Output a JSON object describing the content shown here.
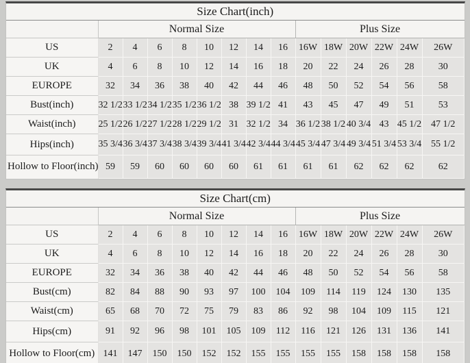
{
  "colors": {
    "page_background": "#cbcbc9",
    "panel_background": "#f5f4f2",
    "data_cell_background": "#e4e3e1",
    "top_border": "#474747",
    "text": "#1b1b1b"
  },
  "chart_data": [
    {
      "type": "table",
      "title": "Size Chart(inch)",
      "column_groups": [
        {
          "label": "",
          "span": 1
        },
        {
          "label": "Normal Size",
          "span": 8
        },
        {
          "label": "Plus Size",
          "span": 6
        }
      ],
      "rows": [
        {
          "label": "US",
          "values": [
            "2",
            "4",
            "6",
            "8",
            "10",
            "12",
            "14",
            "16",
            "16W",
            "18W",
            "20W",
            "22W",
            "24W",
            "26W"
          ]
        },
        {
          "label": "UK",
          "values": [
            "4",
            "6",
            "8",
            "10",
            "12",
            "14",
            "16",
            "18",
            "20",
            "22",
            "24",
            "26",
            "28",
            "30"
          ]
        },
        {
          "label": "EUROPE",
          "values": [
            "32",
            "34",
            "36",
            "38",
            "40",
            "42",
            "44",
            "46",
            "48",
            "50",
            "52",
            "54",
            "56",
            "58"
          ]
        },
        {
          "label": "Bust(inch)",
          "values": [
            "32 1/2",
            "33 1/2",
            "34 1/2",
            "35 1/2",
            "36 1/2",
            "38",
            "39 1/2",
            "41",
            "43",
            "45",
            "47",
            "49",
            "51",
            "53"
          ]
        },
        {
          "label": "Waist(inch)",
          "values": [
            "25 1/2",
            "26 1/2",
            "27 1/2",
            "28 1/2",
            "29 1/2",
            "31",
            "32 1/2",
            "34",
            "36 1/2",
            "38 1/2",
            "40 3/4",
            "43",
            "45 1/2",
            "47 1/2"
          ]
        },
        {
          "label": "Hips(inch)",
          "values": [
            "35 3/4",
            "36 3/4",
            "37 3/4",
            "38 3/4",
            "39 3/4",
            "41 3/4",
            "42 3/4",
            "44 3/4",
            "45 3/4",
            "47 3/4",
            "49 3/4",
            "51 3/4",
            "53 3/4",
            "55 1/2"
          ]
        },
        {
          "label": "Hollow to Floor(inch)",
          "values": [
            "59",
            "59",
            "60",
            "60",
            "60",
            "60",
            "61",
            "61",
            "61",
            "61",
            "62",
            "62",
            "62",
            "62"
          ]
        }
      ]
    },
    {
      "type": "table",
      "title": "Size Chart(cm)",
      "column_groups": [
        {
          "label": "",
          "span": 1
        },
        {
          "label": "Normal Size",
          "span": 8
        },
        {
          "label": "Plus Size",
          "span": 6
        }
      ],
      "rows": [
        {
          "label": "US",
          "values": [
            "2",
            "4",
            "6",
            "8",
            "10",
            "12",
            "14",
            "16",
            "16W",
            "18W",
            "20W",
            "22W",
            "24W",
            "26W"
          ]
        },
        {
          "label": "UK",
          "values": [
            "4",
            "6",
            "8",
            "10",
            "12",
            "14",
            "16",
            "18",
            "20",
            "22",
            "24",
            "26",
            "28",
            "30"
          ]
        },
        {
          "label": "EUROPE",
          "values": [
            "32",
            "34",
            "36",
            "38",
            "40",
            "42",
            "44",
            "46",
            "48",
            "50",
            "52",
            "54",
            "56",
            "58"
          ]
        },
        {
          "label": "Bust(cm)",
          "values": [
            "82",
            "84",
            "88",
            "90",
            "93",
            "97",
            "100",
            "104",
            "109",
            "114",
            "119",
            "124",
            "130",
            "135"
          ]
        },
        {
          "label": "Waist(cm)",
          "values": [
            "65",
            "68",
            "70",
            "72",
            "75",
            "79",
            "83",
            "86",
            "92",
            "98",
            "104",
            "109",
            "115",
            "121"
          ]
        },
        {
          "label": "Hips(cm)",
          "values": [
            "91",
            "92",
            "96",
            "98",
            "101",
            "105",
            "109",
            "112",
            "116",
            "121",
            "126",
            "131",
            "136",
            "141"
          ]
        },
        {
          "label": "Hollow to Floor(cm)",
          "values": [
            "141",
            "147",
            "150",
            "150",
            "152",
            "152",
            "155",
            "155",
            "155",
            "155",
            "158",
            "158",
            "158",
            "158"
          ]
        }
      ]
    }
  ]
}
